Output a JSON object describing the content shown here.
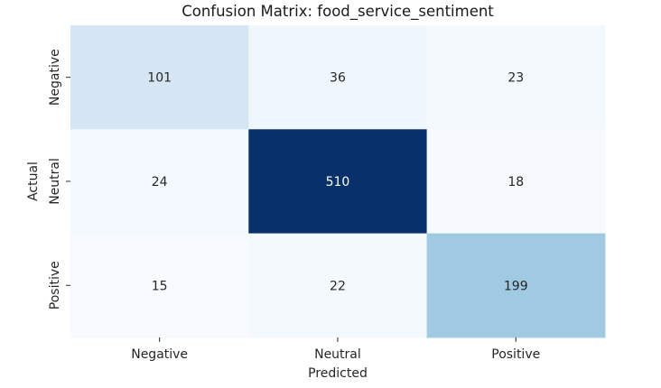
{
  "chart_data": {
    "type": "heatmap",
    "title": "Confusion Matrix: food_service_sentiment",
    "xlabel": "Predicted",
    "ylabel": "Actual",
    "x_categories": [
      "Negative",
      "Neutral",
      "Positive"
    ],
    "y_categories": [
      "Negative",
      "Neutral",
      "Positive"
    ],
    "values": [
      [
        101,
        36,
        23
      ],
      [
        24,
        510,
        18
      ],
      [
        15,
        22,
        199
      ]
    ],
    "colormap": "Blues",
    "colorbar": false,
    "annotations": true,
    "color_min": "#f7fbff",
    "color_max": "#08306b"
  }
}
